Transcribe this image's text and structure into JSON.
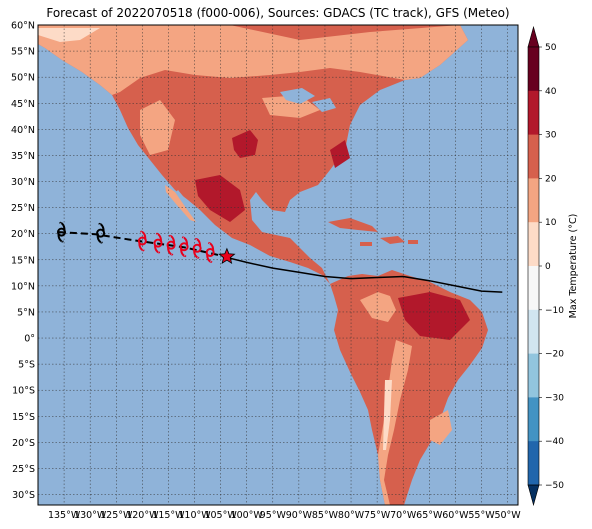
{
  "title": "Forecast of 2022070518 (f000-006), Sources: GDACS (TC track), GFS (Meteo)",
  "map": {
    "lon_range": [
      -140,
      -48
    ],
    "lat_range": [
      -32,
      60
    ],
    "lon_ticks": [
      {
        "v": -135,
        "label": "135°W"
      },
      {
        "v": -130,
        "label": "130°W"
      },
      {
        "v": -125,
        "label": "125°W"
      },
      {
        "v": -120,
        "label": "120°W"
      },
      {
        "v": -115,
        "label": "115°W"
      },
      {
        "v": -110,
        "label": "110°W"
      },
      {
        "v": -105,
        "label": "105°W"
      },
      {
        "v": -100,
        "label": "100°W"
      },
      {
        "v": -95,
        "label": "95°W"
      },
      {
        "v": -90,
        "label": "90°W"
      },
      {
        "v": -85,
        "label": "85°W"
      },
      {
        "v": -80,
        "label": "80°W"
      },
      {
        "v": -75,
        "label": "75°W"
      },
      {
        "v": -70,
        "label": "70°W"
      },
      {
        "v": -65,
        "label": "65°W"
      },
      {
        "v": -60,
        "label": "60°W"
      },
      {
        "v": -55,
        "label": "55°W"
      },
      {
        "v": -50,
        "label": "50°W"
      }
    ],
    "lat_ticks": [
      {
        "v": 60,
        "label": "60°N"
      },
      {
        "v": 55,
        "label": "55°N"
      },
      {
        "v": 50,
        "label": "50°N"
      },
      {
        "v": 45,
        "label": "45°N"
      },
      {
        "v": 40,
        "label": "40°N"
      },
      {
        "v": 35,
        "label": "35°N"
      },
      {
        "v": 30,
        "label": "30°N"
      },
      {
        "v": 25,
        "label": "25°N"
      },
      {
        "v": 20,
        "label": "20°N"
      },
      {
        "v": 15,
        "label": "15°N"
      },
      {
        "v": 10,
        "label": "10°N"
      },
      {
        "v": 5,
        "label": "5°N"
      },
      {
        "v": 0,
        "label": "0°"
      },
      {
        "v": -5,
        "label": "5°S"
      },
      {
        "v": -10,
        "label": "10°S"
      },
      {
        "v": -15,
        "label": "15°S"
      },
      {
        "v": -20,
        "label": "20°S"
      },
      {
        "v": -25,
        "label": "25°S"
      },
      {
        "v": -30,
        "label": "30°S"
      }
    ],
    "ocean_color": "#8fb3d9"
  },
  "colorbar": {
    "label": "Max Temperature (°C)",
    "ticks": [
      "50",
      "40",
      "30",
      "20",
      "10",
      "0",
      "−10",
      "−20",
      "−30",
      "−40",
      "−50"
    ],
    "colors": [
      "#67001f",
      "#b2182b",
      "#d6604d",
      "#f4a582",
      "#fddbc7",
      "#f7f7f7",
      "#d1e5f0",
      "#92c5de",
      "#4393c3",
      "#2166ac",
      "#053061"
    ]
  },
  "storm": {
    "past_track": [
      [
        -136,
        20.3
      ],
      [
        -129,
        19.9
      ],
      [
        -122,
        18.8
      ],
      [
        -112,
        17.4
      ],
      [
        -104.5,
        15.7
      ]
    ],
    "forecast_positions": [
      [
        -120,
        18.6
      ],
      [
        -117,
        18.2
      ],
      [
        -114.5,
        17.8
      ],
      [
        -112,
        17.5
      ],
      [
        -109.5,
        17.2
      ],
      [
        -107,
        16.4
      ]
    ],
    "past_symbols": [
      [
        -135.5,
        20.3
      ],
      [
        -128,
        20.1
      ]
    ],
    "current_position": [
      -103.8,
      15.6
    ],
    "remnant_track": [
      [
        -104,
        15.5
      ],
      [
        -100,
        14.5
      ],
      [
        -95,
        13.4
      ],
      [
        -90,
        12.6
      ],
      [
        -85,
        11.8
      ],
      [
        -80,
        11.4
      ],
      [
        -75,
        11.6
      ],
      [
        -70,
        11.8
      ],
      [
        -65,
        11.0
      ],
      [
        -60,
        10.0
      ],
      [
        -55,
        9.0
      ],
      [
        -51,
        8.8
      ]
    ],
    "track_color": "#000000",
    "forecast_color": "#e8001c"
  }
}
